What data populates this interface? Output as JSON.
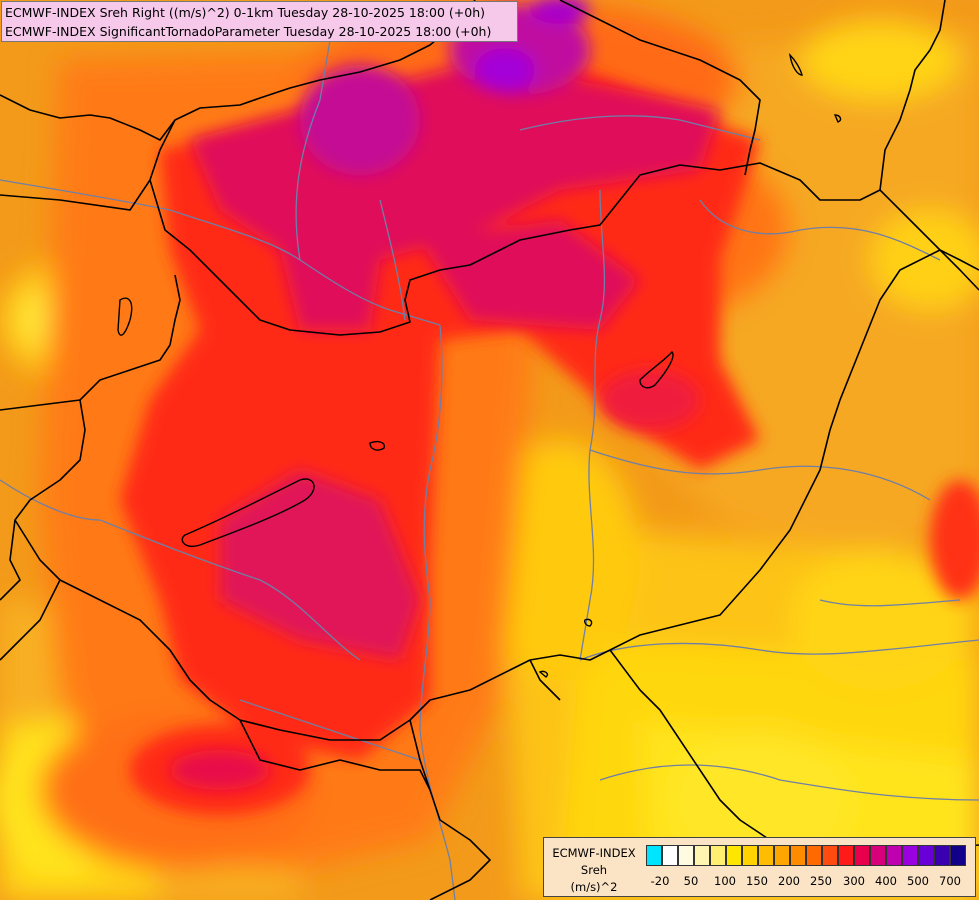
{
  "title": {
    "line1": "ECMWF-INDEX Sreh Right ((m/s)^2) 0-1km Tuesday 28-10-2025 18:00 (+0h)",
    "line2": "ECMWF-INDEX SignificantTornadoParameter Tuesday 28-10-2025 18:00 (+0h)"
  },
  "legend": {
    "line1": "ECMWF-INDEX",
    "line2": "Sreh",
    "line3": "(m/s)^2",
    "ticks": [
      "-20",
      "50",
      "100",
      "150",
      "200",
      "250",
      "300",
      "400",
      "500",
      "700"
    ],
    "colors": [
      "#00e5ff",
      "#ffffff",
      "#fffbe0",
      "#fff5b0",
      "#ffee70",
      "#ffe600",
      "#ffd200",
      "#ffbc00",
      "#ffa500",
      "#ff8c00",
      "#ff6a00",
      "#ff4a10",
      "#ff1a1a",
      "#e8004c",
      "#d8007a",
      "#c000b0",
      "#9a00e0",
      "#6a00d8",
      "#3a00b0",
      "#12008a"
    ]
  },
  "colors": {
    "orange": "#f39a1a",
    "yellow": "#ffe21a",
    "red": "#ff2a1a",
    "magenta": "#dd1a6a",
    "purple": "#b300c8",
    "border": "#000000",
    "river": "#6f7fa6"
  }
}
